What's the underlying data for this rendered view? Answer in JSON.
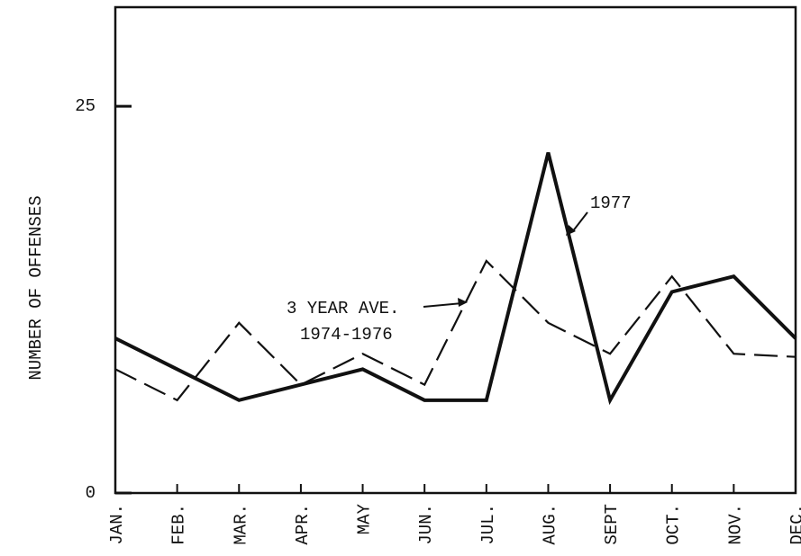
{
  "chart_data": {
    "type": "line",
    "y_label": "NUMBER OF OFFENSES",
    "categories": [
      "JAN.",
      "FEB.",
      "MAR.",
      "APR.",
      "MAY",
      "JUN.",
      "JUL.",
      "AUG.",
      "SEPT",
      "OCT.",
      "NOV.",
      "DEC."
    ],
    "series": [
      {
        "name": "1977",
        "color": "#111111",
        "dash": "solid",
        "values": [
          10,
          8,
          6,
          7,
          8,
          6,
          6,
          22,
          6,
          13,
          14,
          10
        ]
      },
      {
        "name": "3 YEAR AVE.",
        "color": "#111111",
        "dash": "dashed",
        "values": [
          8,
          6,
          11,
          7,
          9,
          7,
          15,
          11,
          9,
          14,
          9,
          8.8
        ]
      }
    ],
    "annotations": [
      "1977",
      "3 YEAR AVE.",
      "1974-1976"
    ],
    "ylim": [
      0,
      31.4
    ],
    "yticks": [
      0,
      25
    ],
    "grid": false
  }
}
